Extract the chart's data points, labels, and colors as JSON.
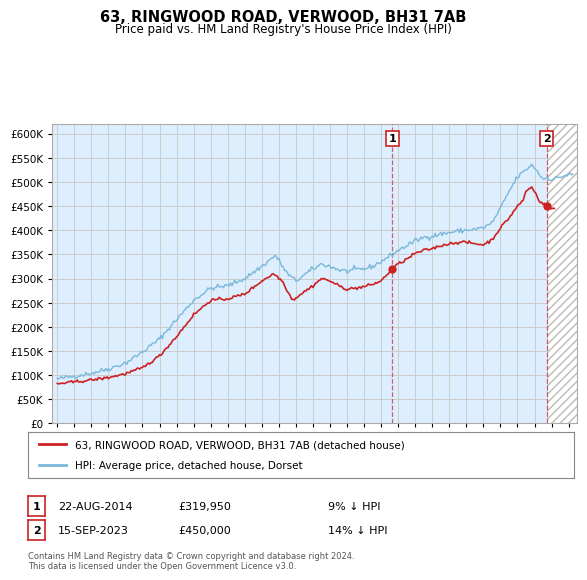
{
  "title": "63, RINGWOOD ROAD, VERWOOD, BH31 7AB",
  "subtitle": "Price paid vs. HM Land Registry's House Price Index (HPI)",
  "hpi_label": "HPI: Average price, detached house, Dorset",
  "price_label": "63, RINGWOOD ROAD, VERWOOD, BH31 7AB (detached house)",
  "footer": "Contains HM Land Registry data © Crown copyright and database right 2024.\nThis data is licensed under the Open Government Licence v3.0.",
  "sale1_date": "22-AUG-2014",
  "sale1_price": 319950,
  "sale1_note": "9% ↓ HPI",
  "sale2_date": "15-SEP-2023",
  "sale2_price": 450000,
  "sale2_note": "14% ↓ HPI",
  "ylim": [
    0,
    620000
  ],
  "yticks": [
    0,
    50000,
    100000,
    150000,
    200000,
    250000,
    300000,
    350000,
    400000,
    450000,
    500000,
    550000,
    600000
  ],
  "hpi_color": "#7ab8d9",
  "price_color": "#cc2222",
  "sale1_x": 2014.65,
  "sale2_x": 2023.71,
  "hatch_start": 2023.71,
  "hatch_end": 2025.5,
  "grid_color": "#cccccc",
  "bg_color": "#ddeeff",
  "xmin": 1994.7,
  "xmax": 2025.5
}
